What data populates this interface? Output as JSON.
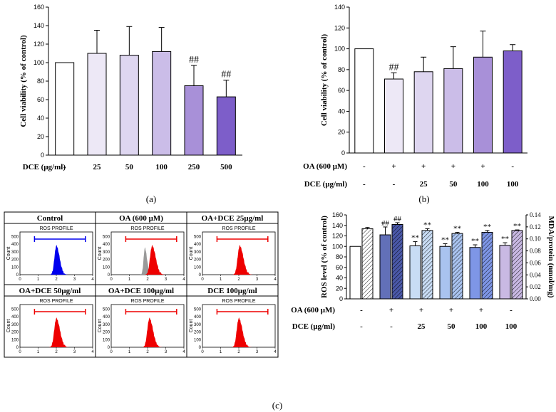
{
  "panel_letters": {
    "a": "(a)",
    "b": "(b)",
    "c": "(c)"
  },
  "chart_data": [
    {
      "id": "a",
      "type": "bar",
      "ylabel": "Cell viability (% of control)",
      "ylim": [
        0,
        160
      ],
      "yticks": [
        0,
        20,
        40,
        60,
        80,
        100,
        120,
        140,
        160
      ],
      "row_labels": [
        {
          "name": "DCE (μg/ml)",
          "values": [
            "-",
            "25",
            "50",
            "100",
            "250",
            "500"
          ]
        }
      ],
      "values": [
        100,
        110,
        108,
        112,
        75,
        63
      ],
      "errors": [
        0,
        25,
        31,
        26,
        22,
        18
      ],
      "annotations": [
        "",
        "",
        "",
        "",
        "##",
        "##"
      ],
      "colors": [
        "#ffffff",
        "#ede8f6",
        "#ded6f0",
        "#cbbde8",
        "#a890d8",
        "#7d5ec9"
      ]
    },
    {
      "id": "b",
      "type": "bar",
      "ylabel": "Cell viability (% of control)",
      "ylim": [
        0,
        140
      ],
      "yticks": [
        0,
        20,
        40,
        60,
        80,
        100,
        120,
        140
      ],
      "row_labels": [
        {
          "name": "OA (600 μM)",
          "values": [
            "-",
            "+",
            "+",
            "+",
            "+",
            "-"
          ]
        },
        {
          "name": "DCE (μg/ml)",
          "values": [
            "-",
            "-",
            "25",
            "50",
            "100",
            "100"
          ]
        }
      ],
      "values": [
        100,
        71,
        78,
        81,
        92,
        98
      ],
      "errors": [
        0,
        6,
        14,
        21,
        25,
        6
      ],
      "annotations": [
        "",
        "##",
        "",
        "",
        "",
        ""
      ],
      "colors": [
        "#ffffff",
        "#ede8f6",
        "#ded6f0",
        "#cbbde8",
        "#a890d8",
        "#7d5ec9"
      ]
    },
    {
      "id": "c-flow",
      "type": "histogram-grid",
      "plot_title": "ROS  PROFILE",
      "ylabel": "Count",
      "yticks": [
        0,
        100,
        200,
        300,
        400,
        500
      ],
      "xticks": [
        0,
        1,
        2,
        3,
        4
      ],
      "panels": [
        {
          "title": "Control",
          "color": "#0000ee",
          "line_color": "#0000ee",
          "peak": 2.0,
          "width": 0.18,
          "ghost": false
        },
        {
          "title": "OA (600 μM)",
          "color": "#ee0000",
          "line_color": "#ee0000",
          "peak": 2.25,
          "width": 0.2,
          "ghost": true
        },
        {
          "title": "OA+DCE 25μg/ml",
          "color": "#ee0000",
          "line_color": "#ee0000",
          "peak": 2.05,
          "width": 0.2,
          "ghost": false
        },
        {
          "title": "OA+DCE 50μg/ml",
          "color": "#ee0000",
          "line_color": "#ee0000",
          "peak": 2.0,
          "width": 0.2,
          "ghost": false
        },
        {
          "title": "OA+DCE 100μg/ml",
          "color": "#ee0000",
          "line_color": "#ee0000",
          "peak": 2.1,
          "width": 0.2,
          "ghost": false
        },
        {
          "title": "DCE 100μg/ml",
          "color": "#ee0000",
          "line_color": "#ee0000",
          "peak": 2.0,
          "width": 0.2,
          "ghost": false
        }
      ]
    },
    {
      "id": "c-bar",
      "type": "bar",
      "ylabel": "ROS level (% of control)",
      "ylabel_right": "MDA/protein (nmol/mg)",
      "ylim": [
        0,
        160
      ],
      "yticks": [
        0,
        20,
        40,
        60,
        80,
        100,
        120,
        140,
        160
      ],
      "ylim_right": [
        0,
        0.14
      ],
      "yticks_right": [
        "0.00",
        "0.02",
        "0.04",
        "0.06",
        "0.08",
        "0.10",
        "0.12",
        "0.14"
      ],
      "row_labels": [
        {
          "name": "OA (600 μM)",
          "values": [
            "-",
            "+",
            "+",
            "+",
            "+",
            "-"
          ]
        },
        {
          "name": "DCE (μg/ml)",
          "values": [
            "-",
            "-",
            "25",
            "50",
            "100",
            "100"
          ]
        }
      ],
      "series": [
        {
          "name": "ROS level",
          "values": [
            100,
            122,
            101,
            100,
            98,
            102
          ],
          "errors": [
            0,
            15,
            8,
            5,
            5,
            5
          ],
          "annotations": [
            "",
            "##",
            "**",
            "**",
            "**",
            "**"
          ],
          "colors": [
            "#ffffff",
            "#6270b8",
            "#c8dcf4",
            "#a9c3ef",
            "#7e96e6",
            "#c9b9e3"
          ]
        },
        {
          "name": "MDA/protein",
          "values": [
            0.117,
            0.124,
            0.114,
            0.109,
            0.111,
            0.114
          ],
          "errors": [
            0.002,
            0.003,
            0.003,
            0.002,
            0.003,
            0.001
          ],
          "annotations": [
            "",
            "##",
            "**",
            "**",
            "**",
            "**"
          ],
          "colors": [
            "#ffffff",
            "#4a58a8",
            "#c8dcf4",
            "#a9c3ef",
            "#7e96e6",
            "#c9b9e3"
          ]
        }
      ]
    }
  ]
}
